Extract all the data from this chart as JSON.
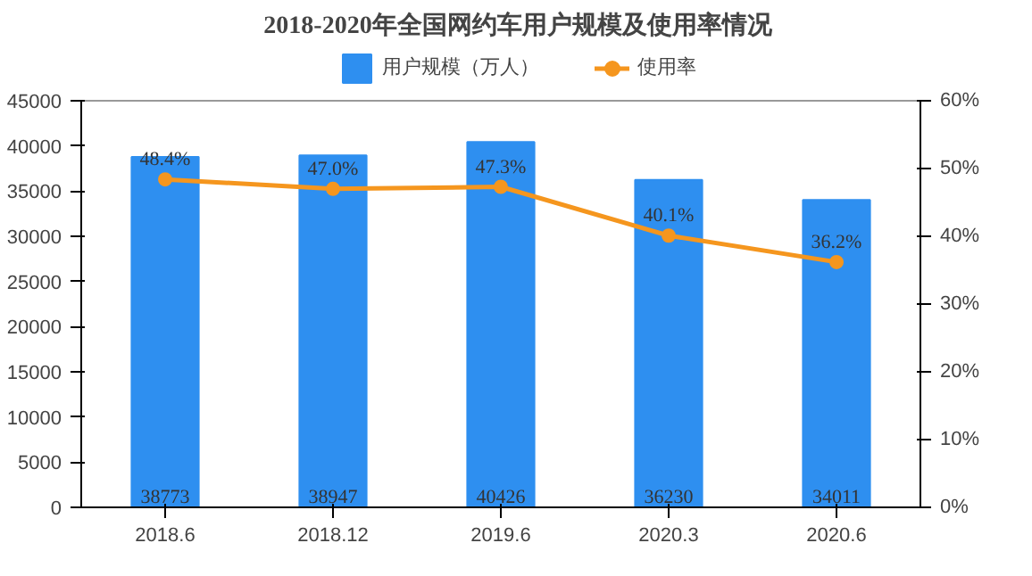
{
  "chart_data": {
    "type": "bar",
    "title": "2018-2020年全国网约车用户规模及使用率情况",
    "categories": [
      "2018.6",
      "2018.12",
      "2019.6",
      "2020.3",
      "2020.6"
    ],
    "series": [
      {
        "name": "用户规模（万人）",
        "color": "#2e8ff0",
        "values": [
          38773,
          38947,
          40426,
          36230,
          34011
        ],
        "value_labels": [
          "38773",
          "38947",
          "40426",
          "36230",
          "34011"
        ]
      },
      {
        "name": "使用率",
        "type": "line",
        "axis": "y2",
        "color": "#f5961e",
        "marker": "circle",
        "values": [
          48.4,
          47.0,
          47.3,
          40.1,
          36.2
        ],
        "value_labels": [
          "48.4%",
          "47.0%",
          "47.3%",
          "40.1%",
          "36.2%"
        ]
      }
    ],
    "ylim": [
      0,
      45000
    ],
    "yticks": [
      0,
      5000,
      10000,
      15000,
      20000,
      25000,
      30000,
      35000,
      40000,
      45000
    ],
    "y2lim": [
      0,
      60
    ],
    "y2ticks": [
      {
        "value": 0,
        "label": "0%"
      },
      {
        "value": 10,
        "label": "10%"
      },
      {
        "value": 20,
        "label": "20%"
      },
      {
        "value": 30,
        "label": "30%"
      },
      {
        "value": 40,
        "label": "40%"
      },
      {
        "value": 50,
        "label": "50%"
      },
      {
        "value": 60,
        "label": "60%"
      }
    ],
    "grid": false,
    "legend": "top"
  }
}
